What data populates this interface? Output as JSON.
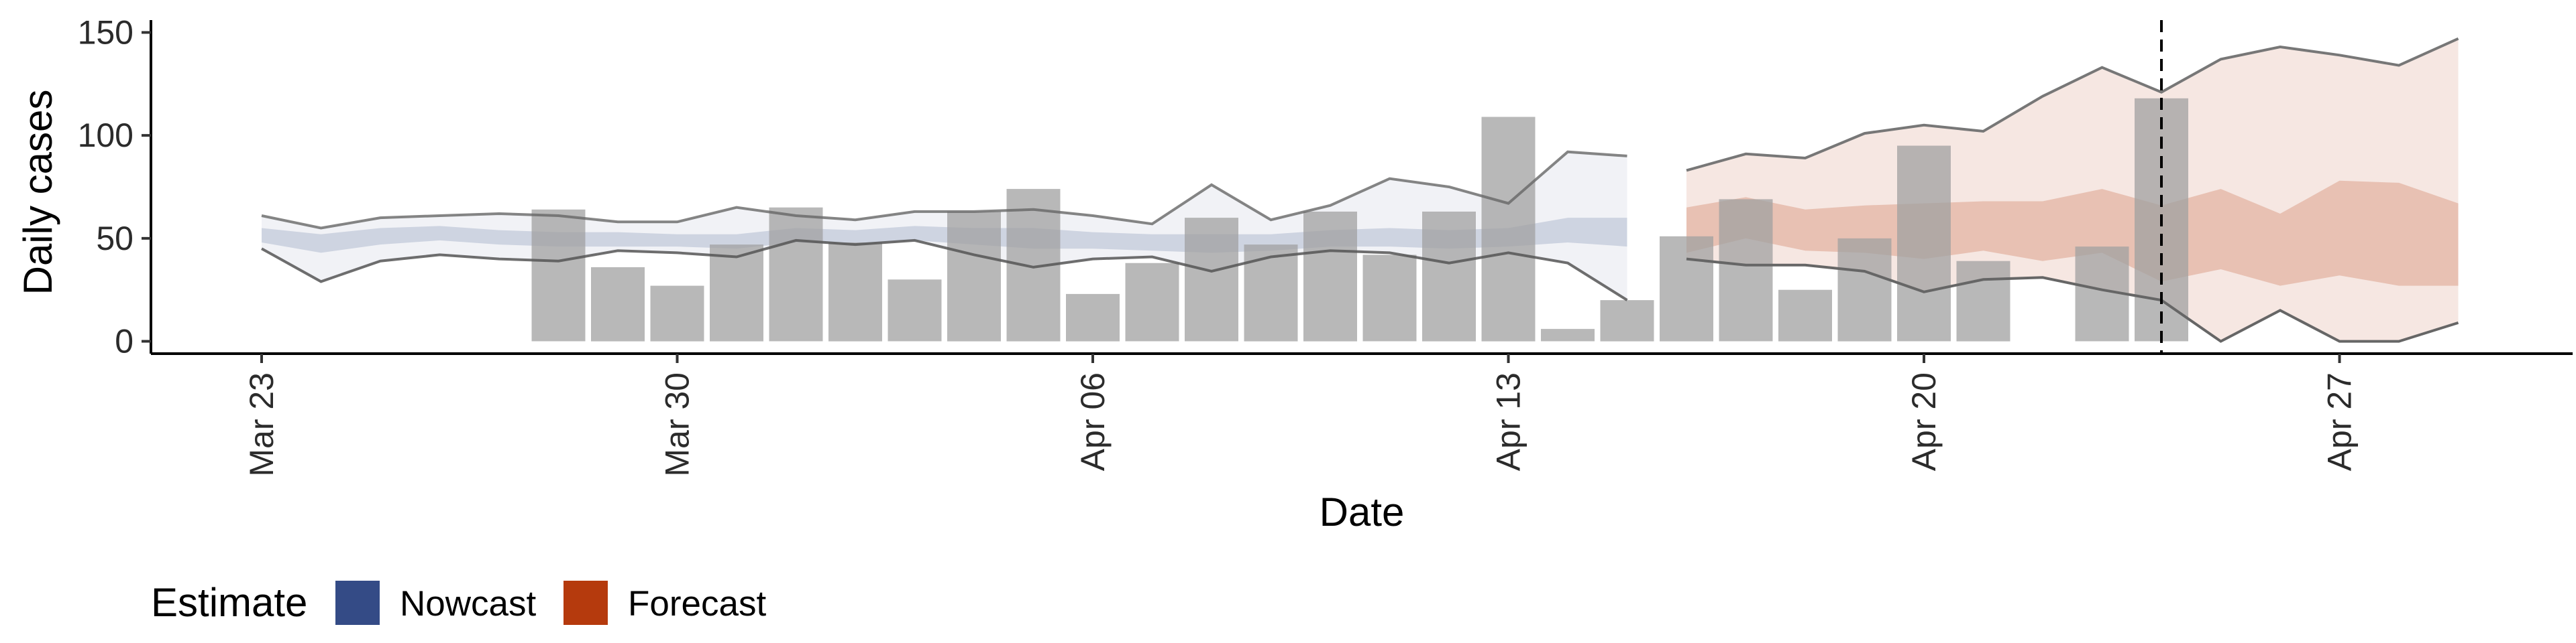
{
  "chart_data": {
    "type": "bar",
    "xlabel": "Date",
    "ylabel": "Daily cases",
    "ylim": [
      -6,
      156
    ],
    "yticks": [
      0,
      50,
      100,
      150
    ],
    "xticks": [
      "Mar 23",
      "Mar 30",
      "Apr 06",
      "Apr 13",
      "Apr 20",
      "Apr 27"
    ],
    "grid": false,
    "legend": {
      "title": "Estimate",
      "placement": "bottom-left",
      "items": [
        {
          "label": "Nowcast",
          "color": "#344b86"
        },
        {
          "label": "Forecast",
          "color": "#b53a0d"
        }
      ]
    },
    "dates": [
      "Mar 23",
      "Mar 24",
      "Mar 25",
      "Mar 26",
      "Mar 27",
      "Mar 28",
      "Mar 29",
      "Mar 30",
      "Mar 31",
      "Apr 01",
      "Apr 02",
      "Apr 03",
      "Apr 04",
      "Apr 05",
      "Apr 06",
      "Apr 07",
      "Apr 08",
      "Apr 09",
      "Apr 10",
      "Apr 11",
      "Apr 12",
      "Apr 13",
      "Apr 14",
      "Apr 15",
      "Apr 16",
      "Apr 17",
      "Apr 18",
      "Apr 19",
      "Apr 20",
      "Apr 21",
      "Apr 22",
      "Apr 23",
      "Apr 24",
      "Apr 25",
      "Apr 26",
      "Apr 27",
      "Apr 28",
      "Apr 29"
    ],
    "observed_cases": [
      null,
      null,
      null,
      null,
      null,
      64,
      36,
      27,
      47,
      65,
      48,
      30,
      63,
      74,
      23,
      38,
      60,
      47,
      63,
      42,
      63,
      109,
      6,
      20,
      51,
      69,
      25,
      50,
      95,
      39,
      null,
      46,
      118
    ],
    "observed_color": "#a0a0a0",
    "nowcast": {
      "upper": [
        61,
        55,
        60,
        61,
        62,
        61,
        58,
        58,
        65,
        61,
        59,
        63,
        63,
        64,
        61,
        57,
        76,
        59,
        66,
        79,
        75,
        67,
        92,
        90
      ],
      "lower": [
        45,
        29,
        39,
        42,
        40,
        39,
        44,
        43,
        41,
        49,
        47,
        49,
        42,
        36,
        40,
        41,
        34,
        41,
        44,
        43,
        38,
        43,
        38,
        20
      ],
      "inner_upper": [
        55,
        52,
        55,
        56,
        54,
        53,
        53,
        52,
        52,
        55,
        54,
        56,
        55,
        55,
        53,
        52,
        52,
        52,
        54,
        55,
        54,
        55,
        60,
        60
      ],
      "inner_lower": [
        48,
        43,
        47,
        49,
        47,
        46,
        46,
        46,
        45,
        48,
        47,
        49,
        47,
        45,
        45,
        44,
        43,
        44,
        46,
        46,
        45,
        46,
        48,
        46
      ],
      "color": "#344b86"
    },
    "forecast": {
      "upper": [
        83,
        91,
        89,
        101,
        105,
        102,
        119,
        133,
        121,
        137,
        143,
        139,
        134,
        147
      ],
      "lower": [
        40,
        37,
        37,
        34,
        24,
        30,
        31,
        25,
        20,
        0,
        15,
        0,
        0,
        9
      ],
      "inner_upper": [
        65,
        70,
        64,
        66,
        67,
        68,
        68,
        74,
        66,
        74,
        62,
        78,
        77,
        67
      ],
      "inner_lower": [
        43,
        50,
        44,
        43,
        40,
        44,
        39,
        43,
        29,
        35,
        27,
        32,
        27,
        27
      ],
      "color": "#b53a0d"
    },
    "vline_date": "Apr 24"
  }
}
